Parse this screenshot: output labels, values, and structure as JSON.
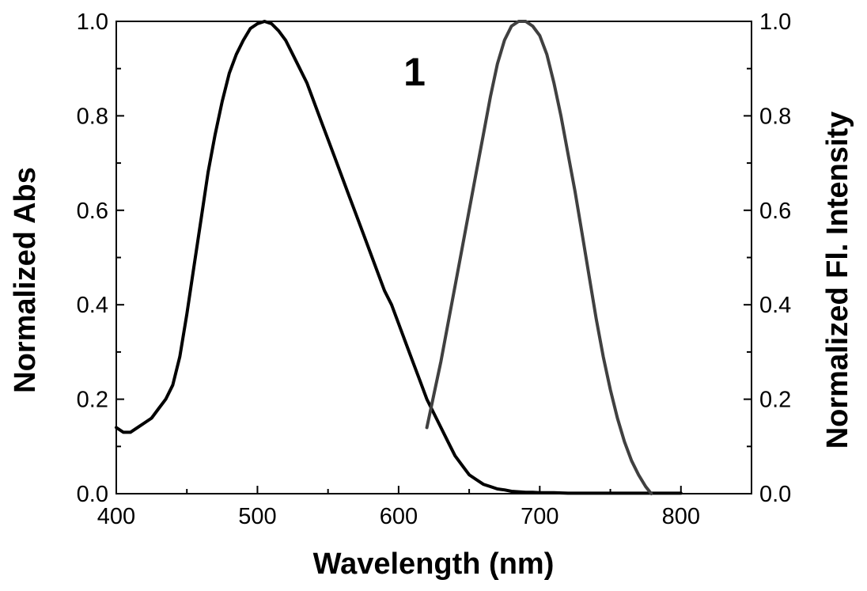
{
  "chart_data": {
    "type": "line",
    "title": "",
    "annotation": "1",
    "xlabel": "Wavelength (nm)",
    "ylabel": "Normalized Abs",
    "y2label": "Normalized Fl. Intensity",
    "xlim": [
      400,
      850
    ],
    "ylim": [
      0,
      1.0
    ],
    "y2lim": [
      0,
      1.0
    ],
    "xticks": [
      400,
      500,
      600,
      700,
      800
    ],
    "yticks": [
      "0.0",
      "0.2",
      "0.4",
      "0.6",
      "0.8",
      "1.0"
    ],
    "y2ticks": [
      "0.0",
      "0.2",
      "0.4",
      "0.6",
      "0.8",
      "1.0"
    ],
    "grid": false,
    "legend": "none",
    "series": [
      {
        "axis": "left",
        "color": "#000000",
        "x": [
          400,
          405,
          410,
          415,
          420,
          425,
          430,
          435,
          440,
          445,
          450,
          455,
          460,
          465,
          470,
          475,
          480,
          485,
          490,
          495,
          500,
          505,
          510,
          515,
          520,
          525,
          530,
          535,
          540,
          545,
          550,
          555,
          560,
          565,
          570,
          575,
          580,
          585,
          590,
          595,
          600,
          605,
          610,
          615,
          620,
          625,
          630,
          635,
          640,
          645,
          650,
          655,
          660,
          665,
          670,
          675,
          680,
          685,
          690,
          695,
          700,
          710,
          720,
          730,
          740,
          750,
          760,
          770,
          780,
          790,
          800
        ],
        "y": [
          0.14,
          0.13,
          0.13,
          0.14,
          0.15,
          0.16,
          0.18,
          0.2,
          0.23,
          0.29,
          0.38,
          0.48,
          0.58,
          0.68,
          0.76,
          0.83,
          0.89,
          0.93,
          0.96,
          0.985,
          0.995,
          1.0,
          0.995,
          0.98,
          0.96,
          0.93,
          0.9,
          0.87,
          0.83,
          0.79,
          0.75,
          0.71,
          0.67,
          0.63,
          0.59,
          0.55,
          0.51,
          0.47,
          0.43,
          0.4,
          0.36,
          0.32,
          0.28,
          0.24,
          0.2,
          0.17,
          0.14,
          0.11,
          0.08,
          0.06,
          0.04,
          0.03,
          0.02,
          0.015,
          0.01,
          0.008,
          0.005,
          0.004,
          0.003,
          0.003,
          0.002,
          0.002,
          0.001,
          0.001,
          0.001,
          0.001,
          0.001,
          0.001,
          0.001,
          0.001,
          0.001
        ]
      },
      {
        "axis": "right",
        "color": "#404040",
        "x": [
          620,
          625,
          630,
          635,
          640,
          645,
          650,
          655,
          660,
          665,
          670,
          675,
          680,
          685,
          690,
          695,
          700,
          705,
          710,
          715,
          720,
          725,
          730,
          735,
          740,
          745,
          750,
          755,
          760,
          765,
          770,
          775,
          779
        ],
        "y": [
          0.14,
          0.21,
          0.28,
          0.36,
          0.44,
          0.52,
          0.6,
          0.68,
          0.76,
          0.84,
          0.91,
          0.96,
          0.99,
          1.0,
          1.0,
          0.99,
          0.97,
          0.93,
          0.87,
          0.8,
          0.72,
          0.64,
          0.55,
          0.46,
          0.37,
          0.29,
          0.22,
          0.16,
          0.11,
          0.07,
          0.04,
          0.015,
          0.0
        ]
      }
    ]
  }
}
